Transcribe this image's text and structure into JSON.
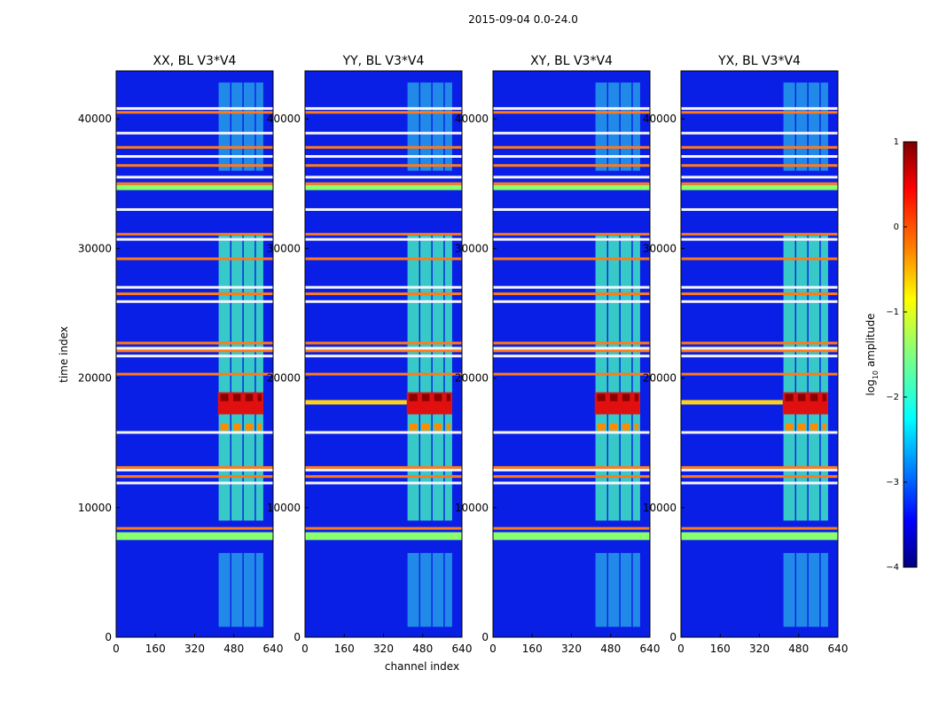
{
  "chart_data": {
    "type": "heatmap",
    "suptitle": "2015-09-04 0.0-24.0",
    "xlabel": "channel index",
    "ylabel": "time index",
    "xlim": [
      0,
      640
    ],
    "ylim": [
      0,
      43700
    ],
    "xticks": [
      0,
      160,
      320,
      480,
      640
    ],
    "yticks": [
      0,
      10000,
      20000,
      30000,
      40000
    ],
    "ytick_labels": [
      "0",
      "10000",
      "20000",
      "30000",
      "40000"
    ],
    "colorbar": {
      "label": "log10 amplitude",
      "label_base": "log",
      "label_sub": "10",
      "label_rest": " amplitude",
      "range": [
        -4,
        1
      ],
      "ticks": [
        1,
        0,
        -1,
        -2,
        -3,
        -4
      ],
      "tick_labels": [
        "1",
        "0",
        "−1",
        "−2",
        "−3",
        "−4"
      ]
    },
    "colormap": [
      "#00007f",
      "#0000ff",
      "#00ffff",
      "#80ff80",
      "#ffff00",
      "#ff8000",
      "#ff0000",
      "#7f0000"
    ],
    "panels": [
      {
        "title": "XX, BL V3*V4",
        "bright_row_extends_left": false
      },
      {
        "title": "YY, BL V3*V4",
        "bright_row_extends_left": true
      },
      {
        "title": "XY, BL V3*V4",
        "bright_row_extends_left": false
      },
      {
        "title": "YX, BL V3*V4",
        "bright_row_extends_left": true
      }
    ],
    "approx_features": {
      "bright_channel_band": [
        415,
        600
      ],
      "bright_channel_columns": [
        [
          418,
          465
        ],
        [
          470,
          515
        ],
        [
          520,
          565
        ],
        [
          570,
          600
        ]
      ],
      "peak_time_range": [
        17200,
        18900
      ],
      "bright_time_range": [
        9000,
        31000
      ],
      "broad_horizontal_bands_green": [
        [
          7500,
          8100
        ],
        [
          34500,
          34900
        ]
      ],
      "orange_horizontal_lines": [
        8400,
        11900,
        12400,
        12900,
        13100,
        15800,
        20300,
        21700,
        22100,
        22300,
        22700,
        25900,
        26500,
        27000,
        29200,
        30700,
        31100,
        33000,
        35000,
        35500,
        36400,
        37100,
        37800,
        38900,
        40500,
        40800
      ]
    }
  }
}
